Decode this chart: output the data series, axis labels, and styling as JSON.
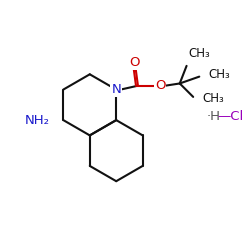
{
  "bg_color": "#ffffff",
  "bond_color": "#111111",
  "N_color": "#1a1acc",
  "O_color": "#cc0000",
  "NH2_color": "#1a1acc",
  "H_color": "#555555",
  "Cl_color": "#9900bb",
  "lw": 1.5,
  "fsz": 9.5,
  "fsz_sm": 8.5,
  "xlim": [
    0,
    10
  ],
  "ylim": [
    0,
    10
  ]
}
